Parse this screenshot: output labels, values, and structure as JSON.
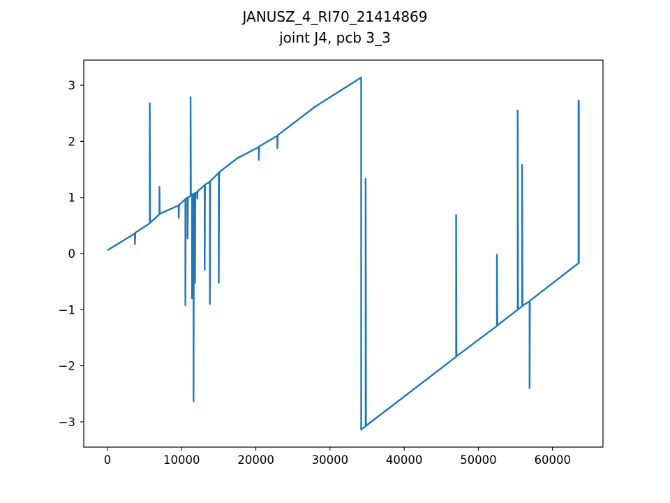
{
  "chart_data": {
    "type": "line",
    "title": "JANUSZ_4_RI70_21414869",
    "subtitle": "joint J4, pcb 3_3",
    "xlabel": "",
    "ylabel": "",
    "xlim": [
      -3200,
      66800
    ],
    "ylim": [
      -3.45,
      3.45
    ],
    "x_ticks": [
      0,
      10000,
      20000,
      30000,
      40000,
      50000,
      60000
    ],
    "x_tick_labels": [
      "0",
      "10000",
      "20000",
      "30000",
      "40000",
      "50000",
      "60000"
    ],
    "y_ticks": [
      -3,
      -2,
      -1,
      0,
      1,
      2,
      3
    ],
    "y_tick_labels": [
      "−3",
      "−2",
      "−1",
      "0",
      "1",
      "2",
      "3"
    ],
    "grid": false,
    "legend": "none",
    "series_color": "#1f77b4",
    "series": [
      {
        "values": [
          [
            0,
            0.06
          ],
          [
            3700,
            0.36
          ],
          [
            3700,
            0.17
          ],
          [
            3750,
            0.37
          ],
          [
            5700,
            0.54
          ],
          [
            5700,
            2.68
          ],
          [
            5750,
            0.55
          ],
          [
            7000,
            0.7
          ],
          [
            7000,
            1.19
          ],
          [
            7050,
            0.71
          ],
          [
            9600,
            0.86
          ],
          [
            9600,
            0.64
          ],
          [
            9650,
            0.87
          ],
          [
            10500,
            0.97
          ],
          [
            10500,
            -0.92
          ],
          [
            10550,
            0.98
          ],
          [
            10800,
            1.0
          ],
          [
            10800,
            0.27
          ],
          [
            10850,
            1.0
          ],
          [
            11200,
            1.03
          ],
          [
            11200,
            2.79
          ],
          [
            11250,
            1.04
          ],
          [
            11400,
            1.05
          ],
          [
            11400,
            -0.8
          ],
          [
            11450,
            1.06
          ],
          [
            11600,
            1.06
          ],
          [
            11600,
            -2.63
          ],
          [
            11650,
            1.07
          ],
          [
            11800,
            1.08
          ],
          [
            11800,
            -0.52
          ],
          [
            11850,
            1.08
          ],
          [
            12100,
            1.1
          ],
          [
            12100,
            0.98
          ],
          [
            12150,
            1.11
          ],
          [
            13100,
            1.22
          ],
          [
            13100,
            -0.29
          ],
          [
            13150,
            1.23
          ],
          [
            13800,
            1.28
          ],
          [
            13800,
            -0.9
          ],
          [
            13850,
            1.29
          ],
          [
            15000,
            1.44
          ],
          [
            15000,
            -0.52
          ],
          [
            15050,
            1.45
          ],
          [
            17500,
            1.7
          ],
          [
            20400,
            1.9
          ],
          [
            20400,
            1.67
          ],
          [
            20450,
            1.91
          ],
          [
            22900,
            2.1
          ],
          [
            22900,
            1.88
          ],
          [
            22950,
            2.11
          ],
          [
            28000,
            2.62
          ],
          [
            34200,
            3.14
          ],
          [
            34200,
            -3.14
          ],
          [
            34250,
            -3.13
          ],
          [
            34800,
            -3.08
          ],
          [
            34800,
            1.33
          ],
          [
            34850,
            -3.07
          ],
          [
            47000,
            -1.84
          ],
          [
            47000,
            0.69
          ],
          [
            47050,
            -1.83
          ],
          [
            52500,
            -1.29
          ],
          [
            52500,
            -0.02
          ],
          [
            52550,
            -1.28
          ],
          [
            55300,
            -1.0
          ],
          [
            55300,
            2.55
          ],
          [
            55350,
            -0.99
          ],
          [
            55900,
            -0.94
          ],
          [
            55900,
            1.58
          ],
          [
            55950,
            -0.93
          ],
          [
            56900,
            -0.85
          ],
          [
            56900,
            -2.4
          ],
          [
            56950,
            -0.84
          ],
          [
            63500,
            -0.17
          ],
          [
            63500,
            2.73
          ],
          [
            63550,
            2.71
          ],
          [
            63550,
            -0.17
          ]
        ]
      }
    ]
  }
}
